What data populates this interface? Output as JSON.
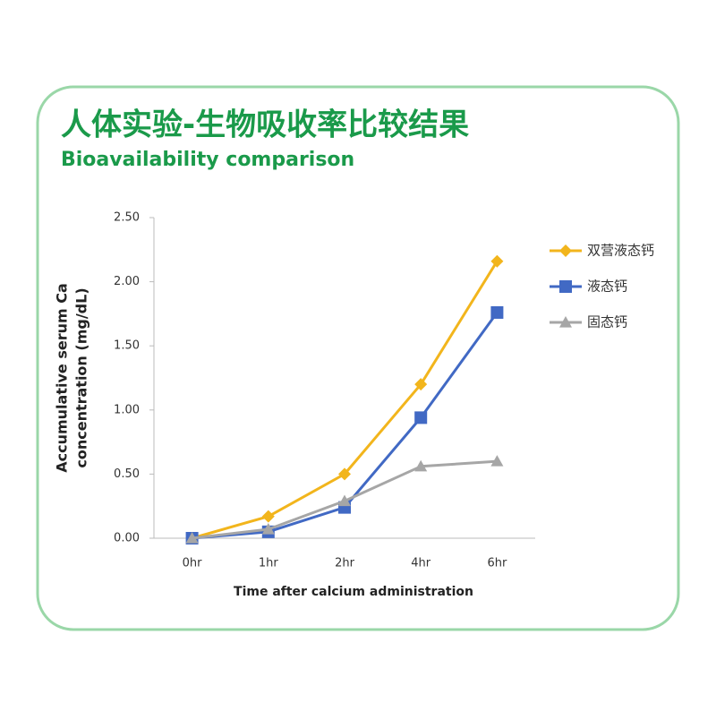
{
  "chart_data": {
    "type": "line",
    "title": "人体实验-生物吸收率比较结果",
    "subtitle": "Bioavailability comparison",
    "x_label": "Time after calcium administration",
    "y_label": [
      "Accumulative serum Ca",
      "concentration (mg/dL)"
    ],
    "categories": [
      "0hr",
      "1hr",
      "2hr",
      "4hr",
      "6hr"
    ],
    "ylim": [
      0,
      2.5
    ],
    "yticks": [
      {
        "value": 0,
        "label": "0.00"
      },
      {
        "value": 0.5,
        "label": "0.50"
      },
      {
        "value": 1,
        "label": "1.00"
      },
      {
        "value": 1.5,
        "label": "1.50"
      },
      {
        "value": 2,
        "label": "2.00"
      },
      {
        "value": 2.5,
        "label": "2.50"
      }
    ],
    "grid": false,
    "legend": "right",
    "series": [
      {
        "name": "双营液态钙",
        "color": "#f2b51c",
        "marker": "diamond",
        "values": [
          0,
          0.17,
          0.5,
          1.2,
          2.16
        ]
      },
      {
        "name": "液态钙",
        "color": "#4169c4",
        "marker": "square",
        "values": [
          0,
          0.05,
          0.24,
          0.94,
          1.76
        ]
      },
      {
        "name": "固态钙",
        "color": "#a6a6a6",
        "marker": "triangle",
        "values": [
          0,
          0.07,
          0.29,
          0.56,
          0.6
        ]
      }
    ]
  }
}
